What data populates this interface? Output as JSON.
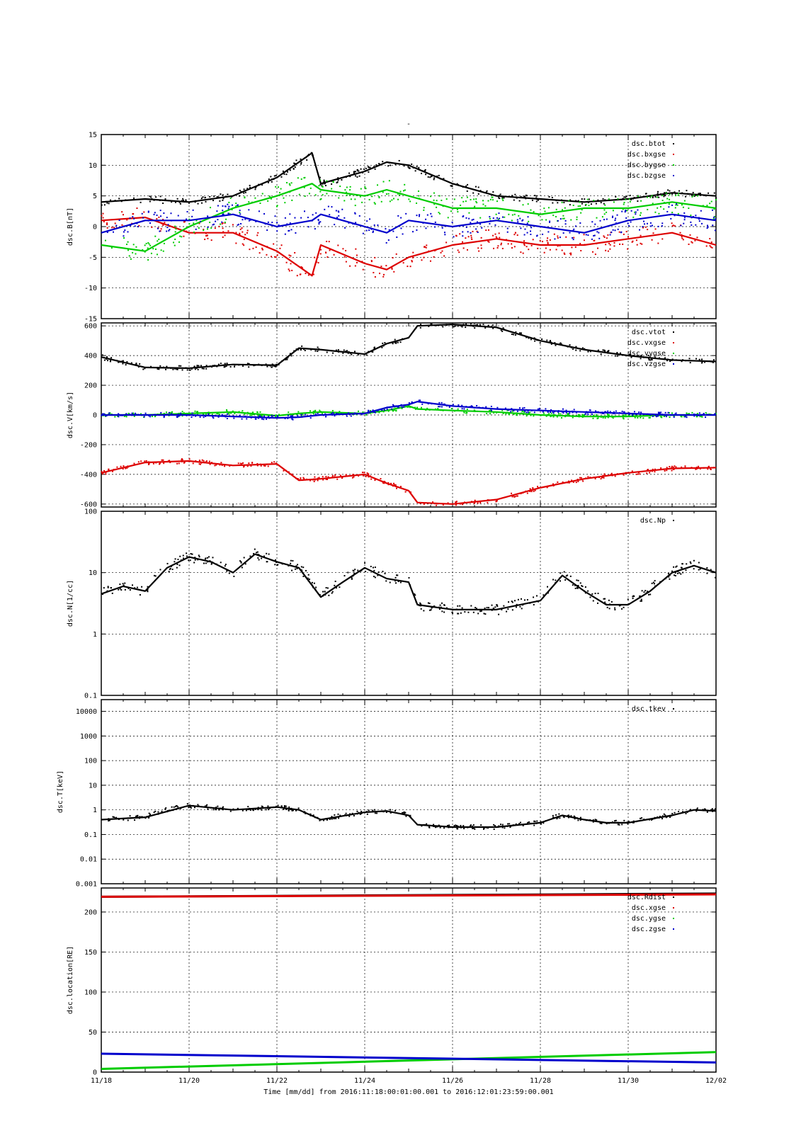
{
  "header": {
    "title": "-"
  },
  "footer": {
    "x_first_tick": "11/18",
    "xlabel": "Time [mm/dd]  from 2016:11:18:00:01:00.001  to  2016:12:01:23:59:00.001"
  },
  "colors": {
    "black": "#000000",
    "red": "#dd0000",
    "green": "#00cc00",
    "blue": "#0000cc"
  },
  "chart_data": [
    {
      "type": "scatter",
      "ylabel": "dsc.B[nT]",
      "ylim": [
        -15,
        15
      ],
      "yscale": "linear",
      "x_ticks": [
        "11/20",
        "11/22",
        "11/24",
        "11/26",
        "11/28",
        "11/30",
        "12/02"
      ],
      "y_ticks": [
        "15",
        "10",
        "5",
        "0",
        "-5",
        "-10",
        "-15"
      ],
      "grid": true,
      "legend_position": "top-right",
      "x": [
        18,
        19,
        20,
        21,
        22,
        22.8,
        23,
        24,
        24.5,
        25,
        26,
        27,
        28,
        29,
        30,
        31,
        32
      ],
      "series": [
        {
          "name": "dsc.btot",
          "color": "#000000",
          "values": [
            4,
            4.5,
            4,
            5,
            8,
            12,
            7,
            9,
            10.5,
            10,
            7,
            5,
            4.5,
            4,
            4.5,
            5.5,
            5
          ]
        },
        {
          "name": "dsc.bxgse",
          "color": "#dd0000",
          "values": [
            1,
            1.5,
            -1,
            -1,
            -4,
            -8,
            -3,
            -6,
            -7,
            -5,
            -3,
            -2,
            -3,
            -3,
            -2,
            -1,
            -3
          ]
        },
        {
          "name": "dsc.bygse",
          "color": "#00cc00",
          "values": [
            -3,
            -4,
            0,
            3,
            5,
            7,
            6,
            5,
            6,
            5,
            3,
            3,
            2,
            3,
            3,
            4,
            3
          ]
        },
        {
          "name": "dsc.bzgse",
          "color": "#0000cc",
          "values": [
            -1,
            1,
            1,
            2,
            0,
            1,
            2,
            0,
            -1,
            1,
            0,
            1,
            0,
            -1,
            1,
            2,
            1
          ]
        }
      ]
    },
    {
      "type": "scatter",
      "ylabel": "dsc.V[km/s]",
      "ylim": [
        -620,
        620
      ],
      "yscale": "linear",
      "x_ticks": [
        "11/20",
        "11/22",
        "11/24",
        "11/26",
        "11/28",
        "11/30",
        "12/02"
      ],
      "y_ticks": [
        "600",
        "400",
        "200",
        "0",
        "-200",
        "-400",
        "-600"
      ],
      "grid": true,
      "legend_position": "top-right",
      "x": [
        18,
        19,
        20,
        21,
        22,
        22.5,
        23,
        24,
        24.5,
        25,
        25.2,
        26,
        27,
        28,
        29,
        30,
        31,
        32
      ],
      "series": [
        {
          "name": "dsc.vtot",
          "color": "#000000",
          "values": [
            390,
            320,
            315,
            340,
            335,
            450,
            440,
            410,
            480,
            520,
            600,
            610,
            590,
            500,
            440,
            400,
            370,
            360
          ]
        },
        {
          "name": "dsc.vxgse",
          "color": "#dd0000",
          "values": [
            -390,
            -320,
            -310,
            -340,
            -330,
            -440,
            -430,
            -400,
            -460,
            -510,
            -590,
            -600,
            -570,
            -490,
            -430,
            -390,
            -360,
            -355
          ]
        },
        {
          "name": "dsc.vygse",
          "color": "#00cc00",
          "values": [
            0,
            0,
            10,
            20,
            -5,
            10,
            20,
            10,
            30,
            60,
            40,
            30,
            20,
            0,
            -10,
            -10,
            0,
            0
          ]
        },
        {
          "name": "dsc.vzgse",
          "color": "#0000cc",
          "values": [
            0,
            0,
            0,
            -10,
            -20,
            -15,
            0,
            10,
            50,
            70,
            90,
            60,
            40,
            30,
            20,
            10,
            0,
            0
          ]
        }
      ]
    },
    {
      "type": "scatter",
      "ylabel": "dsc.N[1/cc]",
      "ylim": [
        0.1,
        100
      ],
      "yscale": "log",
      "x_ticks": [
        "11/20",
        "11/22",
        "11/24",
        "11/26",
        "11/28",
        "11/30",
        "12/02"
      ],
      "y_ticks": [
        "100",
        "10",
        "1",
        "0.1"
      ],
      "grid": true,
      "legend_position": "top-right",
      "x": [
        18,
        18.5,
        19,
        19.5,
        20,
        20.5,
        21,
        21.5,
        22,
        22.5,
        23,
        23.5,
        24,
        24.5,
        25,
        25.2,
        26,
        27,
        28,
        28.5,
        29,
        29.5,
        30,
        30.5,
        31,
        31.5,
        32
      ],
      "series": [
        {
          "name": "dsc.Np",
          "color": "#000000",
          "values": [
            4.5,
            6,
            5,
            12,
            18,
            15,
            10,
            20,
            15,
            12,
            4,
            7,
            12,
            8,
            7,
            3,
            2.5,
            2.5,
            3.5,
            9,
            5,
            3,
            3,
            5,
            10,
            13,
            10
          ]
        }
      ]
    },
    {
      "type": "scatter",
      "ylabel": "dsc.T[keV]",
      "ylim": [
        0.001,
        30000
      ],
      "yscale": "log",
      "x_ticks": [
        "11/20",
        "11/22",
        "11/24",
        "11/26",
        "11/28",
        "11/30",
        "12/02"
      ],
      "y_ticks": [
        "10000",
        "1000",
        "100",
        "10",
        "1",
        "0.1",
        "0.01",
        "0.001"
      ],
      "grid": true,
      "legend_position": "top-right",
      "x": [
        18,
        19,
        20,
        21,
        22,
        22.5,
        23,
        24,
        24.5,
        25,
        25.2,
        26,
        27,
        28,
        28.5,
        29,
        29.5,
        30,
        31,
        31.5,
        32
      ],
      "series": [
        {
          "name": "dsc.tkev",
          "color": "#000000",
          "values": [
            0.4,
            0.5,
            1.5,
            1,
            1.3,
            1,
            0.4,
            0.8,
            0.9,
            0.6,
            0.25,
            0.2,
            0.2,
            0.3,
            0.6,
            0.4,
            0.3,
            0.3,
            0.6,
            1,
            0.9
          ]
        }
      ]
    },
    {
      "type": "line",
      "ylabel": "dsc.location[RE]",
      "ylim": [
        0,
        230
      ],
      "yscale": "linear",
      "x_ticks": [
        "11/20",
        "11/22",
        "11/24",
        "11/26",
        "11/28",
        "11/30",
        "12/02"
      ],
      "y_ticks": [
        "200",
        "150",
        "100",
        "50",
        "0"
      ],
      "grid": true,
      "legend_position": "top-right",
      "x": [
        18,
        32
      ],
      "series": [
        {
          "name": "dsc.Rdist",
          "color": "#000000",
          "values": [
            219,
            223
          ]
        },
        {
          "name": "dsc.xgse",
          "color": "#dd0000",
          "values": [
            219,
            222
          ]
        },
        {
          "name": "dsc.ygse",
          "color": "#00cc00",
          "values": [
            4,
            25
          ]
        },
        {
          "name": "dsc.zgse",
          "color": "#0000cc",
          "values": [
            23,
            12
          ]
        }
      ]
    }
  ]
}
